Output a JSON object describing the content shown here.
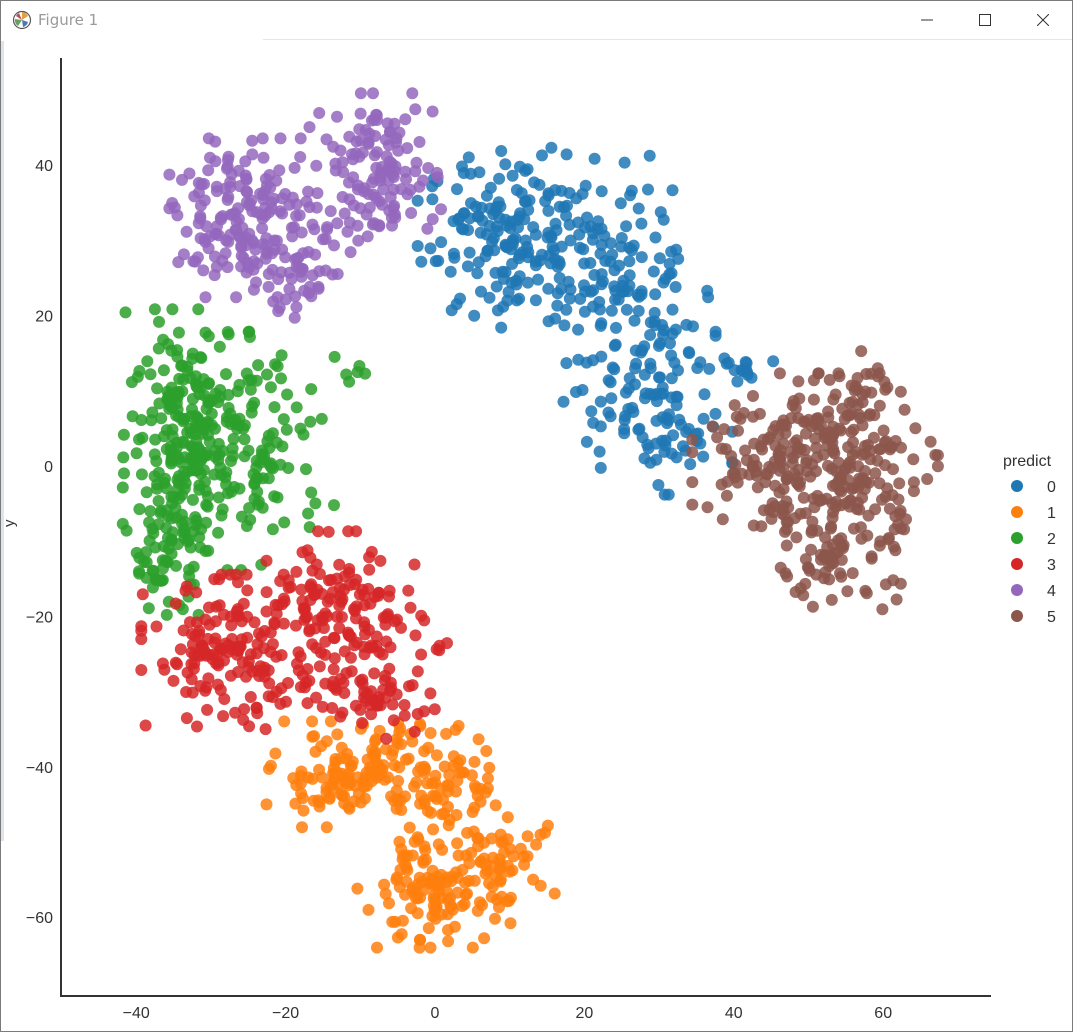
{
  "window": {
    "title": "Figure 1"
  },
  "chart_data": {
    "type": "scatter",
    "title": "",
    "xlabel": "",
    "ylabel": "y",
    "xlim": [
      -50,
      75
    ],
    "ylim": [
      -70,
      55
    ],
    "xticks": [
      -40,
      -20,
      0,
      20,
      40,
      60
    ],
    "yticks": [
      -60,
      -40,
      -20,
      0,
      20,
      40
    ],
    "grid": false,
    "legend": {
      "title": "predict",
      "position": "right"
    },
    "series": [
      {
        "name": "0",
        "color": "#1f77b4",
        "clusters": [
          {
            "cx": 10,
            "cy": 30,
            "sx": 7,
            "sy": 7,
            "n": 160
          },
          {
            "cx": 22,
            "cy": 30,
            "sx": 6,
            "sy": 7,
            "n": 80
          },
          {
            "cx": 27,
            "cy": 16,
            "sx": 6,
            "sy": 8,
            "n": 100
          },
          {
            "cx": 31,
            "cy": 5,
            "sx": 5,
            "sy": 5,
            "n": 60
          },
          {
            "cx": 40,
            "cy": 13,
            "sx": 3,
            "sy": 1,
            "n": 15
          }
        ]
      },
      {
        "name": "1",
        "color": "#ff7f0e",
        "clusters": [
          {
            "cx": -12,
            "cy": -41,
            "sx": 6,
            "sy": 4,
            "n": 120
          },
          {
            "cx": 1,
            "cy": -43,
            "sx": 5,
            "sy": 5,
            "n": 90
          },
          {
            "cx": 0,
            "cy": -57,
            "sx": 6,
            "sy": 4,
            "n": 120
          },
          {
            "cx": 10,
            "cy": -52,
            "sx": 4,
            "sy": 3,
            "n": 40
          }
        ]
      },
      {
        "name": "2",
        "color": "#2ca02c",
        "clusters": [
          {
            "cx": -33,
            "cy": 5,
            "sx": 5,
            "sy": 9,
            "n": 200
          },
          {
            "cx": -24,
            "cy": 2,
            "sx": 6,
            "sy": 9,
            "n": 120
          },
          {
            "cx": -36,
            "cy": -11,
            "sx": 3,
            "sy": 5,
            "n": 70
          },
          {
            "cx": -11,
            "cy": 12,
            "sx": 1,
            "sy": 1,
            "n": 5
          }
        ]
      },
      {
        "name": "3",
        "color": "#d62728",
        "clusters": [
          {
            "cx": -27,
            "cy": -25,
            "sx": 7,
            "sy": 6,
            "n": 170
          },
          {
            "cx": -12,
            "cy": -21,
            "sx": 6,
            "sy": 7,
            "n": 150
          },
          {
            "cx": -7,
            "cy": -31,
            "sx": 4,
            "sy": 3,
            "n": 40
          },
          {
            "cx": 1,
            "cy": -23,
            "sx": 1,
            "sy": 1,
            "n": 4
          }
        ]
      },
      {
        "name": "4",
        "color": "#9467bd",
        "clusters": [
          {
            "cx": -25,
            "cy": 33,
            "sx": 6,
            "sy": 6,
            "n": 170
          },
          {
            "cx": -8,
            "cy": 39,
            "sx": 5,
            "sy": 6,
            "n": 130
          },
          {
            "cx": -19,
            "cy": 25,
            "sx": 4,
            "sy": 3,
            "n": 40
          }
        ]
      },
      {
        "name": "5",
        "color": "#8c564b",
        "clusters": [
          {
            "cx": 45,
            "cy": 1,
            "sx": 6,
            "sy": 6,
            "n": 110
          },
          {
            "cx": 55,
            "cy": 0,
            "sx": 7,
            "sy": 7,
            "n": 170
          },
          {
            "cx": 54,
            "cy": -12,
            "sx": 5,
            "sy": 4,
            "n": 70
          },
          {
            "cx": 56,
            "cy": 10,
            "sx": 3,
            "sy": 3,
            "n": 30
          }
        ]
      }
    ]
  }
}
